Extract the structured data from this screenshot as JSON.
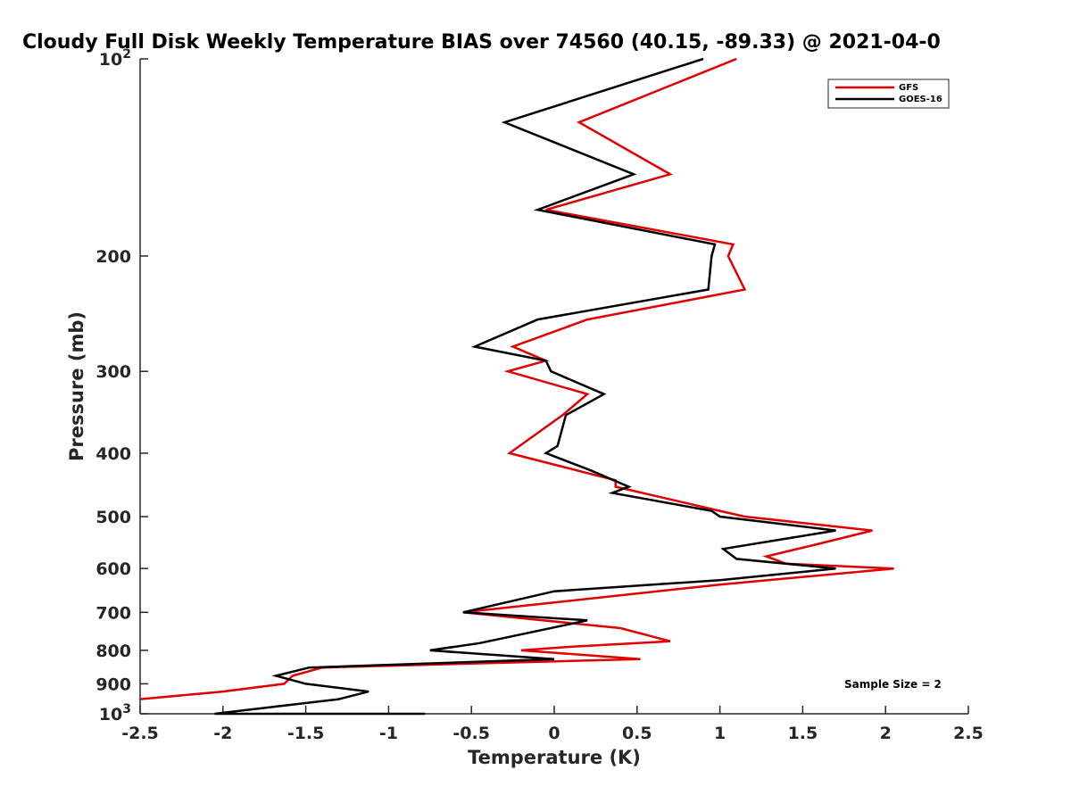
{
  "chart_data": {
    "type": "line",
    "title": "Cloudy Full Disk Weekly Temperature BIAS over 74560 (40.15, -89.33) @ 2021-04-0",
    "xlabel": "Temperature (K)",
    "ylabel": "Pressure (mb)",
    "xlim": [
      -2.5,
      2.5
    ],
    "ylim": [
      100,
      1000
    ],
    "y_scale": "log",
    "y_reversed": true,
    "x_ticks": [
      "-2.5",
      "-2",
      "-1.5",
      "-1",
      "-0.5",
      "0",
      "0.5",
      "1",
      "1.5",
      "2",
      "2.5"
    ],
    "x_tick_values": [
      -2.5,
      -2,
      -1.5,
      -1,
      -0.5,
      0,
      0.5,
      1,
      1.5,
      2,
      2.5
    ],
    "y_ticks": [
      {
        "value": 100,
        "base": "10",
        "exp": "2"
      },
      {
        "value": 200,
        "label": "200"
      },
      {
        "value": 300,
        "label": "300"
      },
      {
        "value": 400,
        "label": "400"
      },
      {
        "value": 500,
        "label": "500"
      },
      {
        "value": 600,
        "label": "600"
      },
      {
        "value": 700,
        "label": "700"
      },
      {
        "value": 800,
        "label": "800"
      },
      {
        "value": 900,
        "label": "900"
      },
      {
        "value": 1000,
        "base": "10",
        "exp": "3"
      }
    ],
    "grid": false,
    "legend": "top-right",
    "series": [
      {
        "name": "GFS",
        "color": "#e00000",
        "points": [
          {
            "x": 1.1,
            "p": 100
          },
          {
            "x": 0.15,
            "p": 125
          },
          {
            "x": 0.7,
            "p": 150
          },
          {
            "x": -0.05,
            "p": 170
          },
          {
            "x": 1.08,
            "p": 192
          },
          {
            "x": 1.05,
            "p": 200
          },
          {
            "x": 1.15,
            "p": 225
          },
          {
            "x": 0.2,
            "p": 250
          },
          {
            "x": -0.25,
            "p": 275
          },
          {
            "x": -0.05,
            "p": 289
          },
          {
            "x": -0.28,
            "p": 300
          },
          {
            "x": 0.2,
            "p": 325
          },
          {
            "x": 0.05,
            "p": 350
          },
          {
            "x": -0.27,
            "p": 400
          },
          {
            "x": 0.37,
            "p": 440
          },
          {
            "x": 0.37,
            "p": 450
          },
          {
            "x": 1.0,
            "p": 490
          },
          {
            "x": 1.15,
            "p": 500
          },
          {
            "x": 1.92,
            "p": 525
          },
          {
            "x": 1.6,
            "p": 550
          },
          {
            "x": 1.28,
            "p": 575
          },
          {
            "x": 1.4,
            "p": 590
          },
          {
            "x": 2.05,
            "p": 600
          },
          {
            "x": 1.0,
            "p": 635
          },
          {
            "x": -0.55,
            "p": 700
          },
          {
            "x": 0.4,
            "p": 740
          },
          {
            "x": 0.7,
            "p": 775
          },
          {
            "x": 0.1,
            "p": 790
          },
          {
            "x": -0.2,
            "p": 800
          },
          {
            "x": 0.52,
            "p": 825
          },
          {
            "x": -1.4,
            "p": 850
          },
          {
            "x": -1.58,
            "p": 875
          },
          {
            "x": -1.63,
            "p": 900
          },
          {
            "x": -2.0,
            "p": 925
          },
          {
            "x": -2.5,
            "p": 950
          }
        ]
      },
      {
        "name": "GOES-16",
        "color": "#000000",
        "points": [
          {
            "x": 0.9,
            "p": 100
          },
          {
            "x": -0.3,
            "p": 125
          },
          {
            "x": 0.48,
            "p": 150
          },
          {
            "x": -0.1,
            "p": 170
          },
          {
            "x": 0.97,
            "p": 192
          },
          {
            "x": 0.95,
            "p": 200
          },
          {
            "x": 0.93,
            "p": 225
          },
          {
            "x": -0.1,
            "p": 250
          },
          {
            "x": -0.48,
            "p": 275
          },
          {
            "x": -0.05,
            "p": 289
          },
          {
            "x": -0.02,
            "p": 300
          },
          {
            "x": 0.3,
            "p": 325
          },
          {
            "x": 0.07,
            "p": 350
          },
          {
            "x": 0.02,
            "p": 390
          },
          {
            "x": -0.05,
            "p": 400
          },
          {
            "x": 0.22,
            "p": 425
          },
          {
            "x": 0.45,
            "p": 450
          },
          {
            "x": 0.35,
            "p": 460
          },
          {
            "x": 0.95,
            "p": 490
          },
          {
            "x": 1.0,
            "p": 500
          },
          {
            "x": 1.7,
            "p": 525
          },
          {
            "x": 1.02,
            "p": 560
          },
          {
            "x": 1.1,
            "p": 580
          },
          {
            "x": 1.7,
            "p": 600
          },
          {
            "x": 1.0,
            "p": 625
          },
          {
            "x": 0.0,
            "p": 650
          },
          {
            "x": -0.55,
            "p": 700
          },
          {
            "x": 0.2,
            "p": 720
          },
          {
            "x": -0.45,
            "p": 780
          },
          {
            "x": -0.75,
            "p": 800
          },
          {
            "x": 0.0,
            "p": 825
          },
          {
            "x": -1.48,
            "p": 850
          },
          {
            "x": -1.68,
            "p": 875
          },
          {
            "x": -1.5,
            "p": 900
          },
          {
            "x": -1.12,
            "p": 925
          },
          {
            "x": -1.3,
            "p": 950
          },
          {
            "x": -2.05,
            "p": 1000
          },
          {
            "x": -0.78,
            "p": 1000
          }
        ]
      }
    ],
    "annotations": [
      "Sample Size = 2"
    ]
  }
}
